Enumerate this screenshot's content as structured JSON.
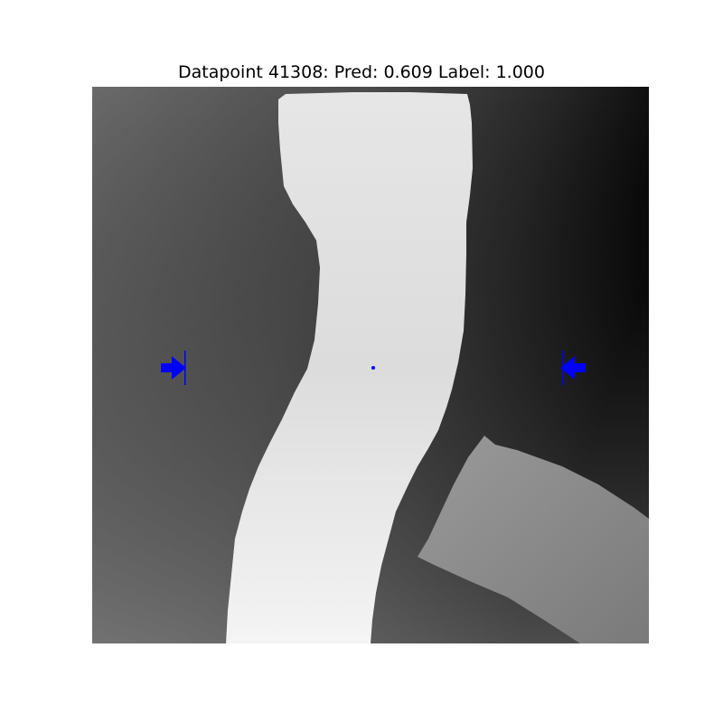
{
  "figure": {
    "title": "Datapoint 41308: Pred: 0.609 Label: 1.000"
  },
  "colors": {
    "marker": "#0000ff",
    "background": "#ffffff"
  },
  "image": {
    "description_icons": [
      "right-arrow-icon",
      "left-arrow-icon",
      "center-dot-icon"
    ]
  }
}
